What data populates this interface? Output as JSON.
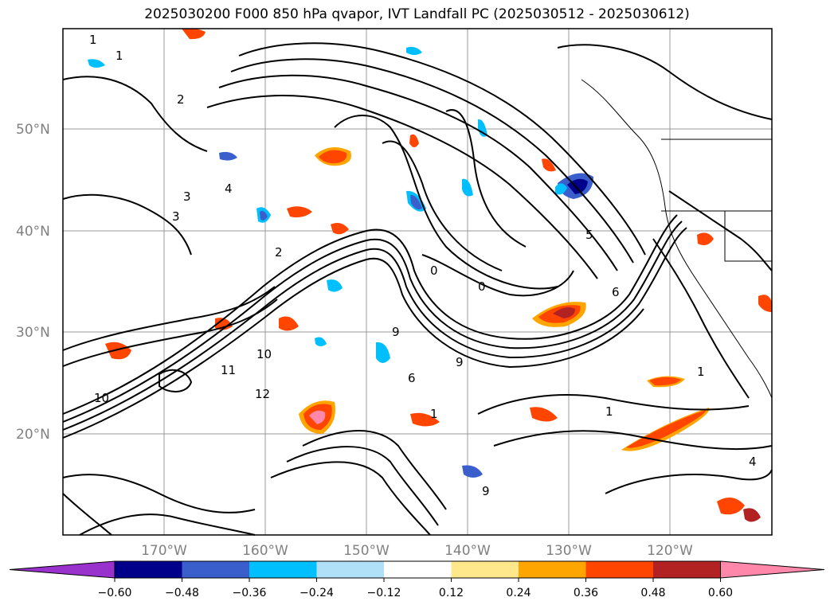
{
  "title": "2025030200 F000 850 hPa qvapor, IVT Landfall PC (2025030512 - 2025030612)",
  "map": {
    "lat_labels": [
      "50°N",
      "40°N",
      "30°N",
      "20°N"
    ],
    "lon_labels": [
      "170°W",
      "160°W",
      "150°W",
      "140°W",
      "130°W",
      "120°W"
    ],
    "contour_labels": [
      "1",
      "1",
      "2",
      "4",
      "3",
      "3",
      "2",
      "9",
      "0",
      "0",
      "9",
      "10",
      "11",
      "6",
      "10",
      "12",
      "9",
      "1",
      "1",
      "1",
      "4",
      "5",
      "6"
    ],
    "gridline_color": "#9a9a9a",
    "contour_color": "#000000"
  },
  "colorbar": {
    "ticks": [
      "−0.60",
      "−0.48",
      "−0.36",
      "−0.24",
      "−0.12",
      "0.12",
      "0.24",
      "0.36",
      "0.48",
      "0.60"
    ],
    "colors": [
      "#9932cc",
      "#00008b",
      "#3a5fcd",
      "#00bfff",
      "#b0e0f8",
      "#ffffff",
      "#ffe88c",
      "#ffa500",
      "#ff4500",
      "#b22222",
      "#ff88aa"
    ],
    "extend": "both"
  }
}
